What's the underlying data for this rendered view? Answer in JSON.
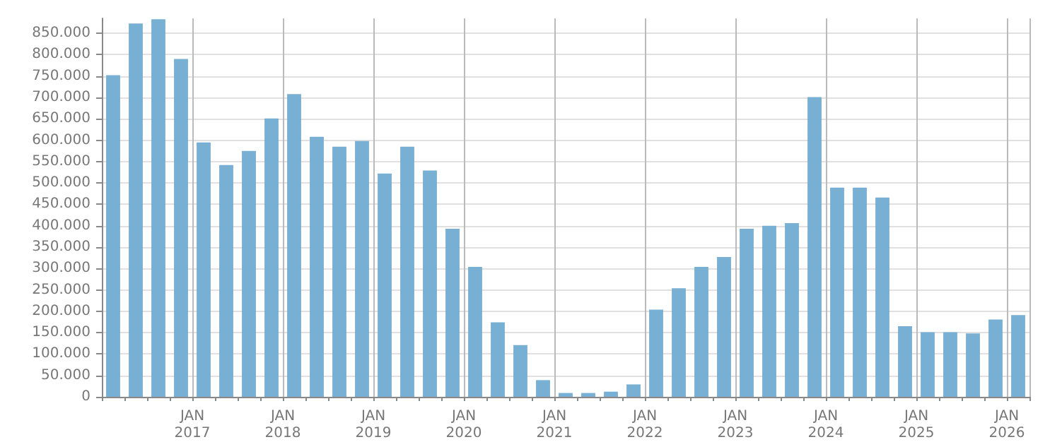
{
  "chart_data": {
    "type": "bar",
    "categories": [
      null,
      null,
      null,
      null,
      "JAN\n2017",
      null,
      null,
      null,
      "JAN\n2018",
      null,
      null,
      null,
      "JAN\n2019",
      null,
      null,
      null,
      "JAN\n2020",
      null,
      null,
      null,
      "JAN\n2021",
      null,
      null,
      null,
      "JAN\n2022",
      null,
      null,
      null,
      "JAN\n2023",
      null,
      null,
      null,
      "JAN\n2024",
      null,
      null,
      null,
      "JAN\n2025",
      null,
      null,
      null,
      "JAN\n2026"
    ],
    "values": [
      752000,
      873000,
      883000,
      790000,
      595000,
      542000,
      575000,
      651000,
      708000,
      608000,
      585000,
      598000,
      522000,
      585000,
      529000,
      393000,
      304000,
      174000,
      121000,
      39000,
      9000,
      9000,
      12000,
      29000,
      204000,
      254000,
      304000,
      327000,
      393000,
      400000,
      406000,
      701000,
      489000,
      489000,
      466000,
      165000,
      151000,
      151000,
      148000,
      181000,
      191000
    ],
    "color": "#78b0d3",
    "ylim": [
      0,
      885000
    ],
    "yticks": [
      {
        "value": 0,
        "label": "0"
      },
      {
        "value": 50000,
        "label": "50.000"
      },
      {
        "value": 100000,
        "label": "100.000"
      },
      {
        "value": 150000,
        "label": "150.000"
      },
      {
        "value": 200000,
        "label": "200.000"
      },
      {
        "value": 250000,
        "label": "250.000"
      },
      {
        "value": 300000,
        "label": "300.000"
      },
      {
        "value": 350000,
        "label": "350.000"
      },
      {
        "value": 400000,
        "label": "400.000"
      },
      {
        "value": 450000,
        "label": "450.000"
      },
      {
        "value": 500000,
        "label": "500.000"
      },
      {
        "value": 550000,
        "label": "550.000"
      },
      {
        "value": 600000,
        "label": "600.000"
      },
      {
        "value": 650000,
        "label": "650.000"
      },
      {
        "value": 700000,
        "label": "700.000"
      },
      {
        "value": 750000,
        "label": "750.000"
      },
      {
        "value": 800000,
        "label": "800.000"
      },
      {
        "value": 850000,
        "label": "850.000"
      }
    ],
    "grid": true
  }
}
